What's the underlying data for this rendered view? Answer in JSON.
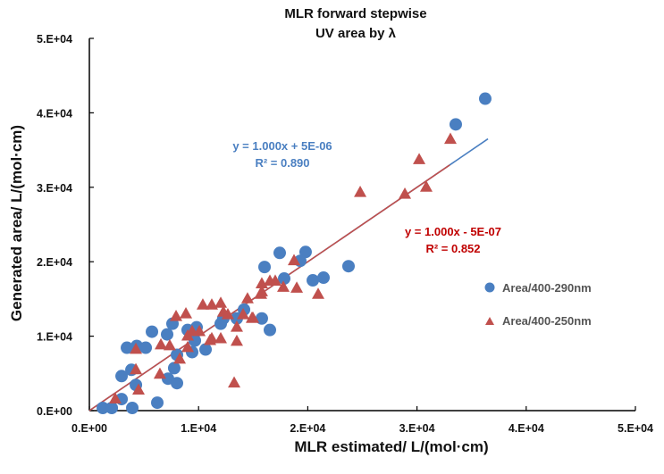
{
  "chart_data": {
    "type": "scatter",
    "title": [
      "MLR forward stepwise",
      "UV area by λ"
    ],
    "xlabel": "MLR estimated/ L/(mol·cm)",
    "ylabel": "Generated  area/ L/(mol·cm)",
    "xlim": [
      0,
      50000
    ],
    "ylim": [
      0,
      50000
    ],
    "xticks": [
      0,
      10000,
      20000,
      30000,
      40000,
      50000
    ],
    "xtick_labels": [
      "0.E+00",
      "1.E+04",
      "2.E+04",
      "3.E+04",
      "4.E+04",
      "5.E+04"
    ],
    "yticks": [
      0,
      10000,
      20000,
      30000,
      40000,
      50000
    ],
    "ytick_labels": [
      "0.E+00",
      "1.E+04",
      "2.E+04",
      "3.E+04",
      "4.E+04",
      "5.E+04"
    ],
    "grid": false,
    "legend_position": "right",
    "series": [
      {
        "name": "Area/400-290nm",
        "marker": "circle",
        "color": "#4a7fc1",
        "trendline": {
          "equation": "y = 1.000x + 5E-06",
          "r2": "R² = 0.890",
          "slope": 1.0,
          "intercept": 5e-06,
          "x_range": [
            0,
            36500
          ]
        },
        "points": [
          [
            1230,
            360
          ],
          [
            2050,
            360
          ],
          [
            3930,
            360
          ],
          [
            6220,
            1070
          ],
          [
            2950,
            1550
          ],
          [
            2950,
            4640
          ],
          [
            3850,
            5480
          ],
          [
            4260,
            3450
          ],
          [
            7200,
            4290
          ],
          [
            8020,
            3690
          ],
          [
            7770,
            5710
          ],
          [
            3440,
            8450
          ],
          [
            4340,
            8690
          ],
          [
            5160,
            8450
          ],
          [
            5730,
            10600
          ],
          [
            7120,
            10240
          ],
          [
            7610,
            11670
          ],
          [
            9000,
            10830
          ],
          [
            9820,
            11190
          ],
          [
            9660,
            9400
          ],
          [
            9410,
            7860
          ],
          [
            10640,
            8210
          ],
          [
            12030,
            11670
          ],
          [
            12270,
            12380
          ],
          [
            13500,
            12380
          ],
          [
            14160,
            13570
          ],
          [
            15790,
            12380
          ],
          [
            16530,
            10830
          ],
          [
            8020,
            7500
          ],
          [
            17430,
            21190
          ],
          [
            19800,
            21310
          ],
          [
            19310,
            20120
          ],
          [
            16040,
            19290
          ],
          [
            17840,
            17740
          ],
          [
            20460,
            17500
          ],
          [
            21440,
            17860
          ],
          [
            23730,
            19400
          ],
          [
            36250,
            41900
          ],
          [
            33550,
            38450
          ]
        ]
      },
      {
        "name": "Area/400-250nm",
        "marker": "triangle",
        "color": "#c0504d",
        "trendline": {
          "equation": "y = 1.000x - 5E-07",
          "r2": "R² = 0.852",
          "slope": 1.0,
          "intercept": -5e-07,
          "x_range": [
            0,
            33000
          ]
        },
        "points": [
          [
            2370,
            1550
          ],
          [
            4500,
            2740
          ],
          [
            4260,
            5480
          ],
          [
            6460,
            4880
          ],
          [
            8270,
            6900
          ],
          [
            4260,
            8210
          ],
          [
            6550,
            8810
          ],
          [
            7360,
            8690
          ],
          [
            7940,
            12620
          ],
          [
            8840,
            12980
          ],
          [
            9000,
            8450
          ],
          [
            10390,
            14170
          ],
          [
            11210,
            14170
          ],
          [
            12030,
            14400
          ],
          [
            12270,
            13210
          ],
          [
            12680,
            12860
          ],
          [
            14480,
            15000
          ],
          [
            15710,
            15600
          ],
          [
            9410,
            10600
          ],
          [
            10070,
            10600
          ],
          [
            9000,
            10000
          ],
          [
            11210,
            9640
          ],
          [
            12030,
            9640
          ],
          [
            13500,
            11190
          ],
          [
            13500,
            9290
          ],
          [
            14080,
            12860
          ],
          [
            14890,
            12380
          ],
          [
            11050,
            9400
          ],
          [
            13260,
            3690
          ],
          [
            18740,
            20120
          ],
          [
            15790,
            17020
          ],
          [
            16530,
            17380
          ],
          [
            17020,
            17380
          ],
          [
            17760,
            16550
          ],
          [
            18990,
            16430
          ],
          [
            15790,
            15950
          ],
          [
            20950,
            15600
          ],
          [
            14980,
            12380
          ],
          [
            33060,
            36430
          ],
          [
            30200,
            33690
          ],
          [
            30850,
            30000
          ],
          [
            28890,
            29050
          ],
          [
            24800,
            29290
          ]
        ]
      }
    ]
  }
}
